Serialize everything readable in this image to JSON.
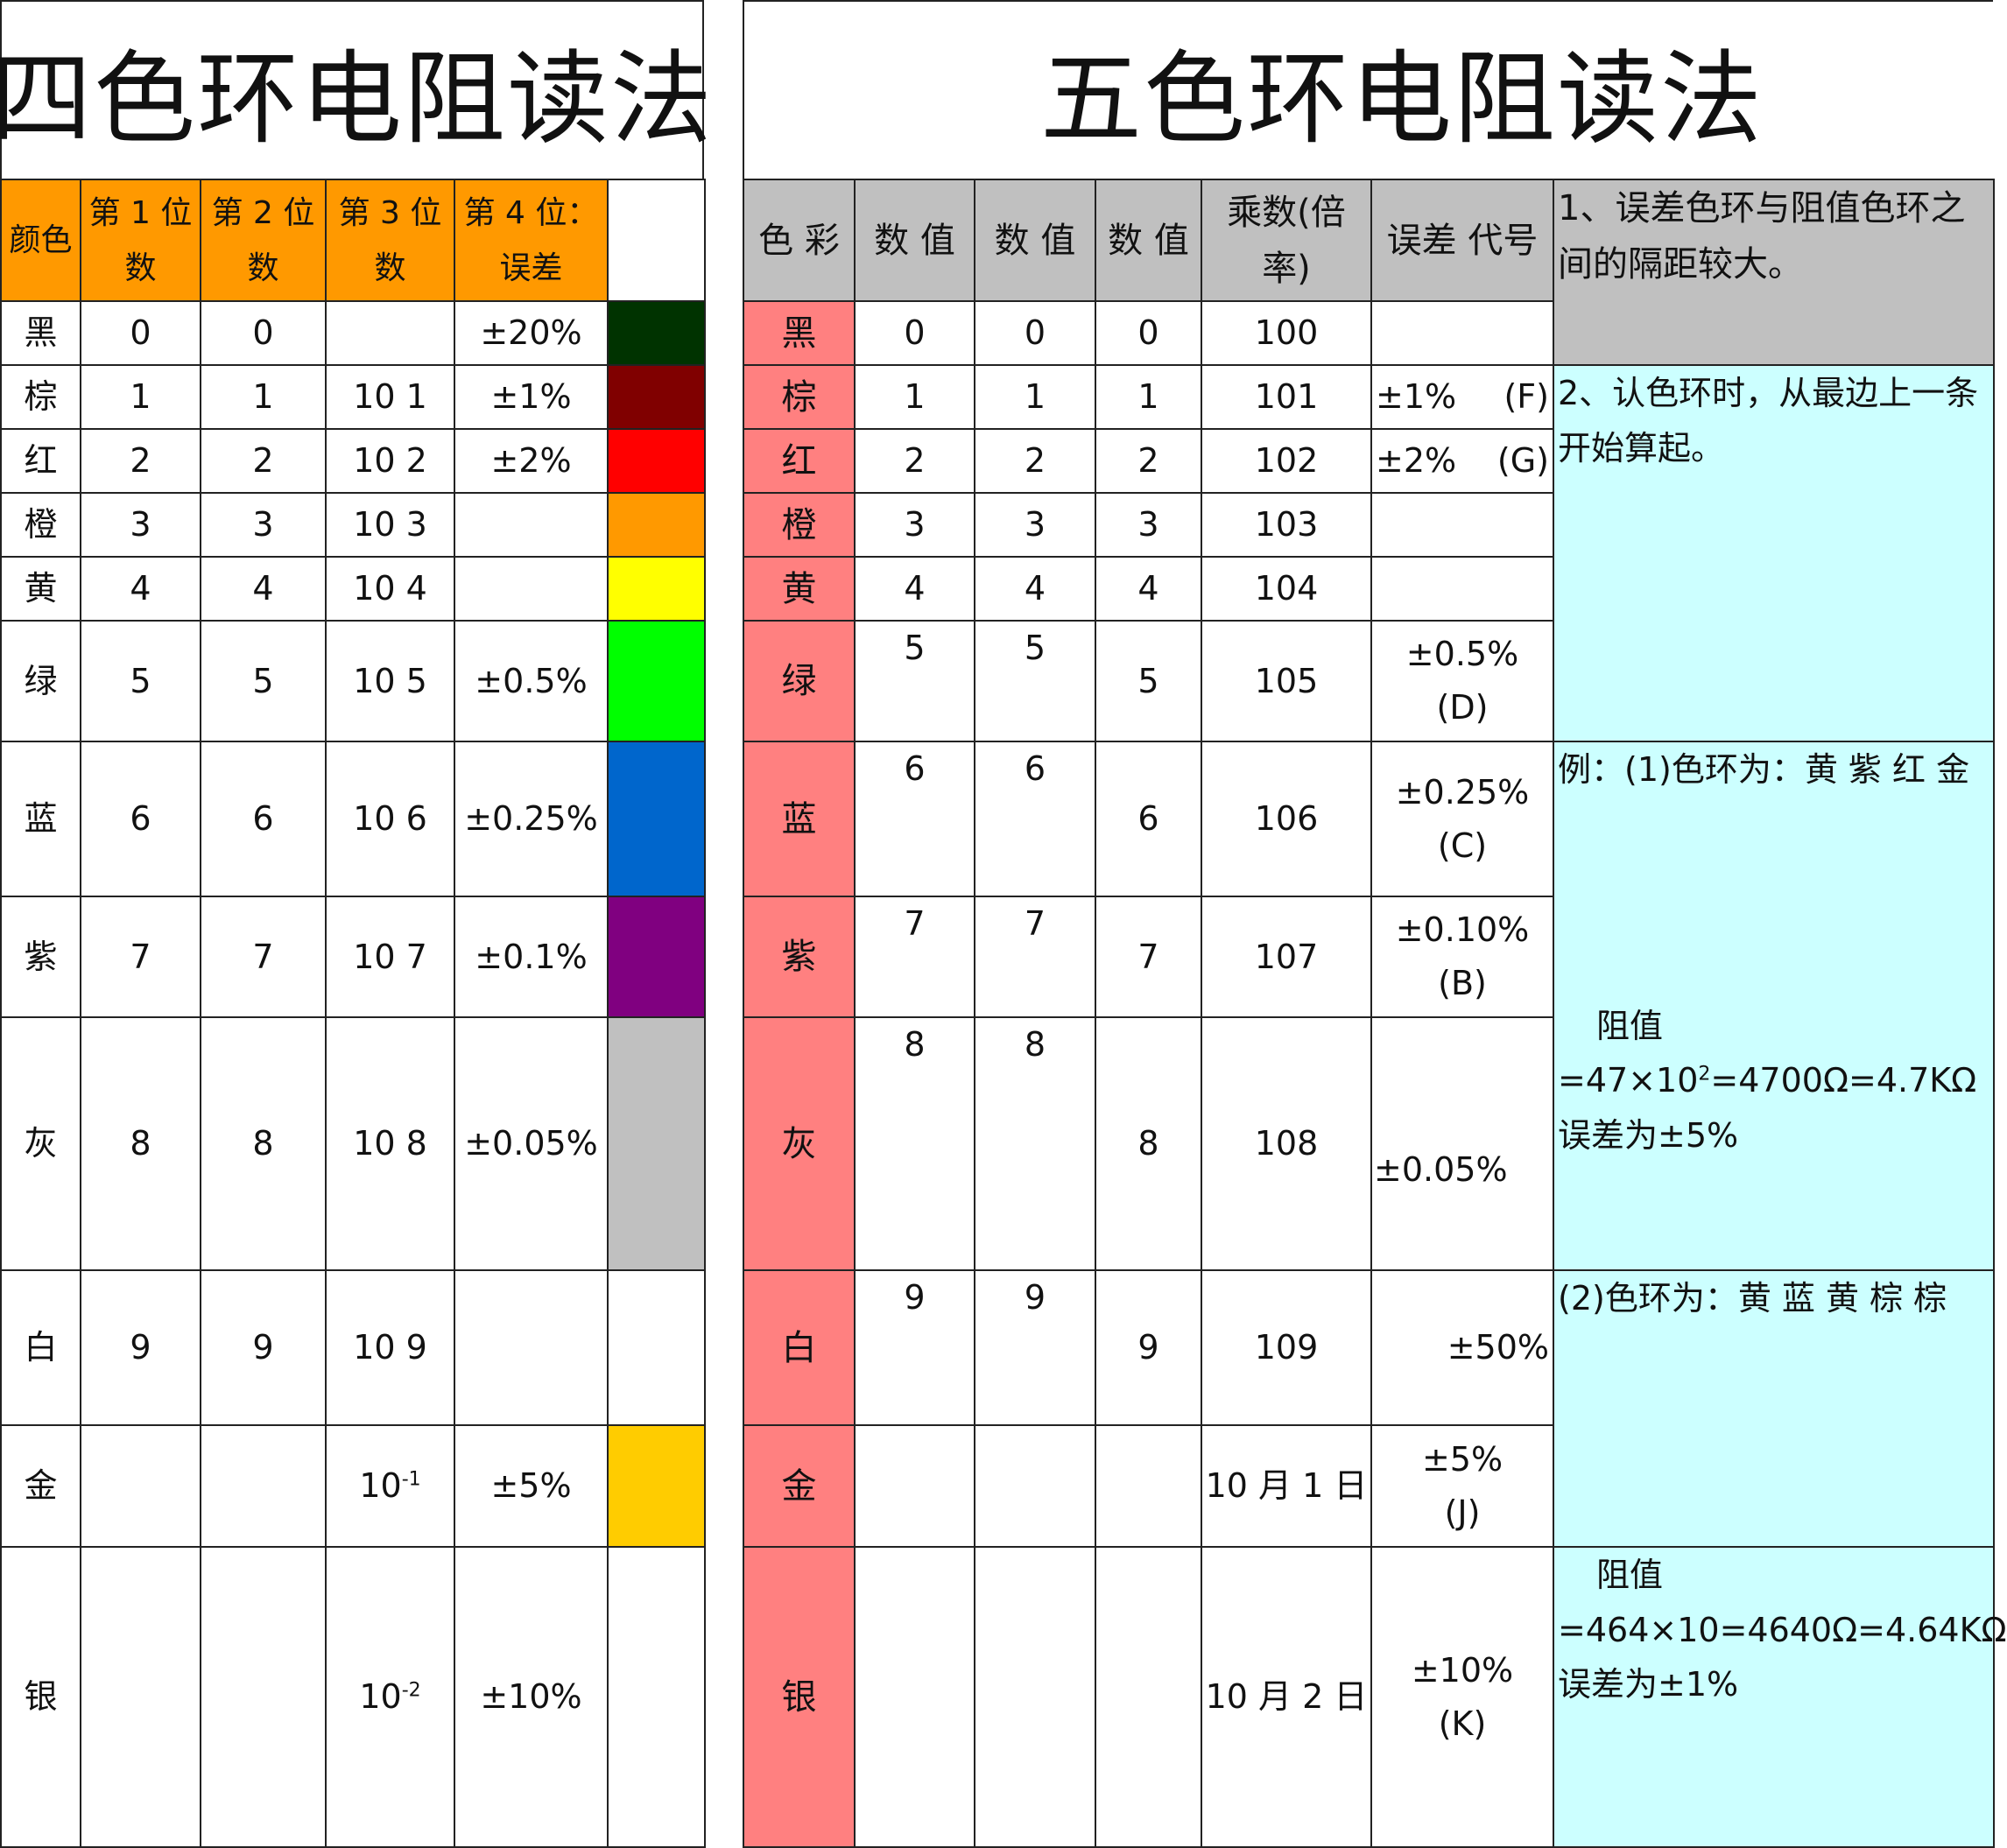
{
  "four_band": {
    "title": "四色环电阻读法",
    "headers": [
      "颜色",
      "第 1 位数",
      "第 2 位数",
      "第 3 位数",
      "第 4 位：误差"
    ],
    "header_lines": [
      [
        "颜色"
      ],
      [
        "第 1 位",
        "数"
      ],
      [
        "第 2 位",
        "数"
      ],
      [
        "第 3 位",
        "数"
      ],
      [
        "第 4 位：",
        "误差"
      ]
    ],
    "rows": [
      {
        "color": "黑",
        "d1": "0",
        "d2": "0",
        "d3": "",
        "tol": "±20%",
        "swatch": "#003300"
      },
      {
        "color": "棕",
        "d1": "1",
        "d2": "1",
        "d3": "10 1",
        "tol": "±1%",
        "swatch": "#800000"
      },
      {
        "color": "红",
        "d1": "2",
        "d2": "2",
        "d3": "10 2",
        "tol": "±2%",
        "swatch": "#ff0000"
      },
      {
        "color": "橙",
        "d1": "3",
        "d2": "3",
        "d3": "10 3",
        "tol": "",
        "swatch": "#ff9900"
      },
      {
        "color": "黄",
        "d1": "4",
        "d2": "4",
        "d3": "10 4",
        "tol": "",
        "swatch": "#ffff00"
      },
      {
        "color": "绿",
        "d1": "5",
        "d2": "5",
        "d3": "10 5",
        "tol": "±0.5%",
        "swatch": "#00ff00"
      },
      {
        "color": "蓝",
        "d1": "6",
        "d2": "6",
        "d3": "10 6",
        "tol": "±0.25%",
        "swatch": "#0066cc"
      },
      {
        "color": "紫",
        "d1": "7",
        "d2": "7",
        "d3": "10 7",
        "tol": "±0.1%",
        "swatch": "#800080"
      },
      {
        "color": "灰",
        "d1": "8",
        "d2": "8",
        "d3": "10 8",
        "tol": "±0.05%",
        "swatch": "#c0c0c0"
      },
      {
        "color": "白",
        "d1": "9",
        "d2": "9",
        "d3": "10 9",
        "tol": "",
        "swatch": "#ffffff"
      },
      {
        "color": "金",
        "d1": "",
        "d2": "",
        "d3_base": "10",
        "d3_exp": "-1",
        "tol": "±5%",
        "swatch": "#ffcc00"
      },
      {
        "color": "银",
        "d1": "",
        "d2": "",
        "d3_base": "10",
        "d3_exp": "-2",
        "tol": "±10%",
        "swatch": "#ffffff"
      }
    ]
  },
  "five_band": {
    "title": "五色环电阻读法",
    "headers": [
      "色 彩",
      "数 值",
      "数 值",
      "数 值",
      "乘数(倍率)",
      "误差 代号"
    ],
    "multiplier_lines": [
      "乘数(倍",
      "率)"
    ],
    "rows": [
      {
        "color": "黑",
        "d1": "0",
        "d2": "0",
        "d3": "0",
        "mult": "100",
        "tol": "",
        "code": ""
      },
      {
        "color": "棕",
        "d1": "1",
        "d2": "1",
        "d3": "1",
        "mult": "101",
        "tol": "±1%",
        "code": "(F)"
      },
      {
        "color": "红",
        "d1": "2",
        "d2": "2",
        "d3": "2",
        "mult": "102",
        "tol": "±2%",
        "code": "(G)"
      },
      {
        "color": "橙",
        "d1": "3",
        "d2": "3",
        "d3": "3",
        "mult": "103",
        "tol": "",
        "code": ""
      },
      {
        "color": "黄",
        "d1": "4",
        "d2": "4",
        "d3": "4",
        "mult": "104",
        "tol": "",
        "code": ""
      },
      {
        "color": "绿",
        "d1": "5",
        "d2": "5",
        "d3": "5",
        "mult": "105",
        "tol": "±0.5%",
        "code": "(D)"
      },
      {
        "color": "蓝",
        "d1": "6",
        "d2": "6",
        "d3": "6",
        "mult": "106",
        "tol": "±0.25%",
        "code": "(C)"
      },
      {
        "color": "紫",
        "d1": "7",
        "d2": "7",
        "d3": "7",
        "mult": "107",
        "tol": "±0.10%",
        "code": "(B)"
      },
      {
        "color": "灰",
        "d1": "8",
        "d2": "8",
        "d3": "8",
        "mult": "108",
        "tol": "±0.05%",
        "code": ""
      },
      {
        "color": "白",
        "d1": "9",
        "d2": "9",
        "d3": "9",
        "mult": "109",
        "tol": "±50%",
        "code": ""
      },
      {
        "color": "金",
        "d1": "",
        "d2": "",
        "d3": "",
        "mult": "10 月 1 日",
        "tol": "±5%",
        "code": "(J)"
      },
      {
        "color": "银",
        "d1": "",
        "d2": "",
        "d3": "",
        "mult": "10 月 2 日",
        "tol": "±10%",
        "code": "(K)"
      }
    ],
    "notes": {
      "note1": "1、误差色环与阻值色环之间的隔距较大。",
      "note2": "2、认色环时，从最边上一条开始算起。",
      "example1": "例：(1)色环为：黄 紫 红 金",
      "example1_value_label": "阻值",
      "example1_value_pre": "=47×10",
      "example1_value_exp": "2",
      "example1_value_post": "=4700Ω=4.7KΩ",
      "example1_tol": "误差为±5%",
      "example2": "(2)色环为：黄 蓝 黄 棕 棕",
      "example2_value_label": "阻值",
      "example2_value": "=464×10=4640Ω=4.64KΩ",
      "example2_tol": "误差为±1%"
    }
  }
}
